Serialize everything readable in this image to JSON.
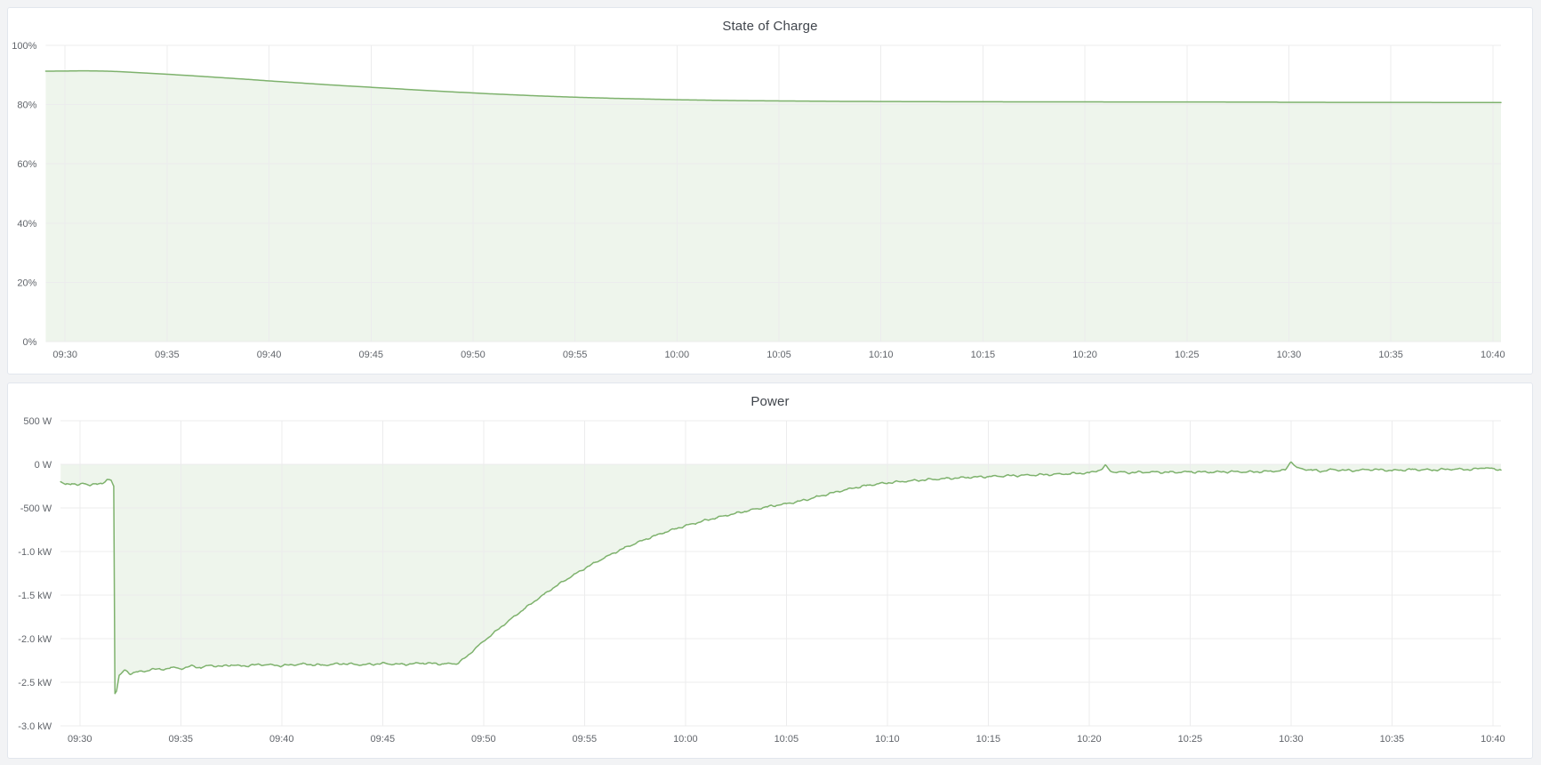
{
  "page": {
    "background_color": "#f2f3f5",
    "panel_background": "#ffffff",
    "panel_border_color": "#e2e6ed",
    "accent_green": "#7eb26d",
    "fill_green": "rgba(126,178,109,0.13)",
    "grid_color": "#ececed",
    "tick_text_color": "#61656b",
    "title_text_color": "#40454c"
  },
  "panels": [
    {
      "title": "State of Charge"
    },
    {
      "title": "Power"
    }
  ],
  "chart_data": [
    {
      "type": "area",
      "title": "State of Charge",
      "xlabel": "",
      "ylabel": "",
      "legend": "none",
      "grid": true,
      "line_color": "#7eb26d",
      "fill_color": "rgba(126,178,109,0.13)",
      "ylim": [
        0,
        100
      ],
      "y_tick_values": [
        0,
        20,
        40,
        60,
        80,
        100
      ],
      "y_tick_labels": [
        "0%",
        "20%",
        "40%",
        "60%",
        "80%",
        "100%"
      ],
      "x_range_minutes": [
        -0.95,
        70.4
      ],
      "x_tick_minutes": [
        0,
        5,
        10,
        15,
        20,
        25,
        30,
        35,
        40,
        45,
        50,
        55,
        60,
        65,
        70
      ],
      "x_tick_labels": [
        "09:30",
        "09:35",
        "09:40",
        "09:45",
        "09:50",
        "09:55",
        "10:00",
        "10:05",
        "10:10",
        "10:15",
        "10:20",
        "10:25",
        "10:30",
        "10:35",
        "10:40"
      ],
      "baseline_value": 0,
      "noise_amplitude": 0,
      "unit": "percent",
      "points": [
        [
          -1,
          91.3
        ],
        [
          0,
          91.32
        ],
        [
          0.7,
          91.4
        ],
        [
          1.4,
          91.38
        ],
        [
          2,
          91.3
        ],
        [
          2.6,
          91.15
        ],
        [
          3.2,
          90.95
        ],
        [
          4,
          90.65
        ],
        [
          5,
          90.25
        ],
        [
          6,
          89.85
        ],
        [
          7,
          89.4
        ],
        [
          8,
          88.95
        ],
        [
          9,
          88.5
        ],
        [
          10,
          88.0
        ],
        [
          11,
          87.55
        ],
        [
          12,
          87.1
        ],
        [
          13,
          86.65
        ],
        [
          14,
          86.25
        ],
        [
          15,
          85.85
        ],
        [
          16,
          85.45
        ],
        [
          17,
          85.05
        ],
        [
          18,
          84.65
        ],
        [
          19,
          84.3
        ],
        [
          20,
          83.95
        ],
        [
          21,
          83.6
        ],
        [
          22,
          83.3
        ],
        [
          23,
          83.0
        ],
        [
          24,
          82.75
        ],
        [
          25,
          82.5
        ],
        [
          26,
          82.3
        ],
        [
          27,
          82.1
        ],
        [
          28,
          81.95
        ],
        [
          29,
          81.8
        ],
        [
          30,
          81.65
        ],
        [
          31,
          81.55
        ],
        [
          32,
          81.45
        ],
        [
          33,
          81.35
        ],
        [
          34,
          81.3
        ],
        [
          35,
          81.25
        ],
        [
          36,
          81.2
        ],
        [
          37,
          81.15
        ],
        [
          38,
          81.1
        ],
        [
          39,
          81.08
        ],
        [
          40,
          81.05
        ],
        [
          42,
          81.0
        ],
        [
          44,
          80.97
        ],
        [
          46,
          80.95
        ],
        [
          48,
          80.93
        ],
        [
          50,
          80.92
        ],
        [
          52,
          80.9
        ],
        [
          54,
          80.9
        ],
        [
          56,
          80.88
        ],
        [
          58,
          80.87
        ],
        [
          59.4,
          80.85
        ],
        [
          59.6,
          80.78
        ],
        [
          62,
          80.76
        ],
        [
          64,
          80.75
        ],
        [
          66,
          80.73
        ],
        [
          68,
          80.72
        ],
        [
          70.4,
          80.7
        ]
      ]
    },
    {
      "type": "area",
      "title": "Power",
      "xlabel": "",
      "ylabel": "",
      "legend": "none",
      "grid": true,
      "line_color": "#7eb26d",
      "fill_color": "rgba(126,178,109,0.13)",
      "ylim": [
        -3000,
        500
      ],
      "y_tick_values": [
        500,
        0,
        -500,
        -1000,
        -1500,
        -2000,
        -2500,
        -3000
      ],
      "y_tick_labels": [
        "500 W",
        "0 W",
        "-500 W",
        "-1.0 kW",
        "-1.5 kW",
        "-2.0 kW",
        "-2.5 kW",
        "-3.0 kW"
      ],
      "x_range_minutes": [
        -0.95,
        70.4
      ],
      "x_tick_minutes": [
        0,
        5,
        10,
        15,
        20,
        25,
        30,
        35,
        40,
        45,
        50,
        55,
        60,
        65,
        70
      ],
      "x_tick_labels": [
        "09:30",
        "09:35",
        "09:40",
        "09:45",
        "09:50",
        "09:55",
        "10:00",
        "10:05",
        "10:10",
        "10:15",
        "10:20",
        "10:25",
        "10:30",
        "10:35",
        "10:40"
      ],
      "baseline_value": 0,
      "noise_amplitude": 16,
      "unit": "watt",
      "points": [
        [
          -1,
          -205
        ],
        [
          -0.7,
          -230
        ],
        [
          -0.4,
          -215
        ],
        [
          -0.1,
          -245
        ],
        [
          0.2,
          -210
        ],
        [
          0.5,
          -240
        ],
        [
          0.8,
          -230
        ],
        [
          1.1,
          -215
        ],
        [
          1.35,
          -180
        ],
        [
          1.55,
          -185
        ],
        [
          1.68,
          -250
        ],
        [
          1.74,
          -2630
        ],
        [
          1.82,
          -2600
        ],
        [
          1.95,
          -2420
        ],
        [
          2.2,
          -2360
        ],
        [
          2.5,
          -2410
        ],
        [
          2.8,
          -2370
        ],
        [
          3.2,
          -2385
        ],
        [
          3.6,
          -2340
        ],
        [
          4,
          -2360
        ],
        [
          4.5,
          -2330
        ],
        [
          5,
          -2345
        ],
        [
          5.5,
          -2315
        ],
        [
          6,
          -2330
        ],
        [
          6.5,
          -2305
        ],
        [
          7,
          -2320
        ],
        [
          7.5,
          -2300
        ],
        [
          8,
          -2315
        ],
        [
          9,
          -2295
        ],
        [
          10,
          -2310
        ],
        [
          11,
          -2290
        ],
        [
          12,
          -2305
        ],
        [
          13,
          -2285
        ],
        [
          14,
          -2300
        ],
        [
          15,
          -2285
        ],
        [
          16,
          -2295
        ],
        [
          17,
          -2280
        ],
        [
          18,
          -2290
        ],
        [
          18.7,
          -2285
        ],
        [
          19.2,
          -2200
        ],
        [
          19.6,
          -2110
        ],
        [
          20,
          -2030
        ],
        [
          20.5,
          -1935
        ],
        [
          21,
          -1840
        ],
        [
          21.5,
          -1750
        ],
        [
          22,
          -1660
        ],
        [
          22.5,
          -1575
        ],
        [
          23,
          -1490
        ],
        [
          23.5,
          -1410
        ],
        [
          24,
          -1335
        ],
        [
          24.5,
          -1265
        ],
        [
          25,
          -1195
        ],
        [
          25.5,
          -1130
        ],
        [
          26,
          -1070
        ],
        [
          26.5,
          -1012
        ],
        [
          27,
          -958
        ],
        [
          27.5,
          -908
        ],
        [
          28,
          -862
        ],
        [
          28.5,
          -818
        ],
        [
          29,
          -778
        ],
        [
          29.5,
          -740
        ],
        [
          30,
          -705
        ],
        [
          30.5,
          -673
        ],
        [
          31,
          -643
        ],
        [
          31.5,
          -615
        ],
        [
          32,
          -588
        ],
        [
          32.5,
          -562
        ],
        [
          33,
          -536
        ],
        [
          33.5,
          -512
        ],
        [
          34,
          -490
        ],
        [
          34.5,
          -470
        ],
        [
          35,
          -452
        ],
        [
          35.5,
          -430
        ],
        [
          36,
          -405
        ],
        [
          36.5,
          -375
        ],
        [
          37,
          -345
        ],
        [
          37.5,
          -315
        ],
        [
          38,
          -288
        ],
        [
          38.5,
          -264
        ],
        [
          39,
          -243
        ],
        [
          39.5,
          -226
        ],
        [
          40,
          -212
        ],
        [
          41,
          -192
        ],
        [
          42,
          -176
        ],
        [
          43,
          -162
        ],
        [
          44,
          -150
        ],
        [
          45,
          -140
        ],
        [
          46,
          -131
        ],
        [
          47,
          -124
        ],
        [
          48,
          -117
        ],
        [
          49,
          -108
        ],
        [
          50,
          -98
        ],
        [
          50.6,
          -60
        ],
        [
          50.8,
          -15
        ],
        [
          51.1,
          -85
        ],
        [
          52,
          -95
        ],
        [
          53,
          -88
        ],
        [
          54,
          -92
        ],
        [
          55,
          -86
        ],
        [
          56,
          -90
        ],
        [
          57,
          -84
        ],
        [
          58,
          -88
        ],
        [
          59,
          -80
        ],
        [
          59.7,
          -70
        ],
        [
          60,
          35
        ],
        [
          60.3,
          -45
        ],
        [
          61,
          -65
        ],
        [
          61.5,
          -80
        ],
        [
          62,
          -60
        ],
        [
          63,
          -72
        ],
        [
          64,
          -58
        ],
        [
          65,
          -70
        ],
        [
          66,
          -60
        ],
        [
          67,
          -64
        ],
        [
          68,
          -55
        ],
        [
          69,
          -60
        ],
        [
          69.6,
          -35
        ],
        [
          70,
          -55
        ],
        [
          70.4,
          -60
        ]
      ]
    }
  ]
}
